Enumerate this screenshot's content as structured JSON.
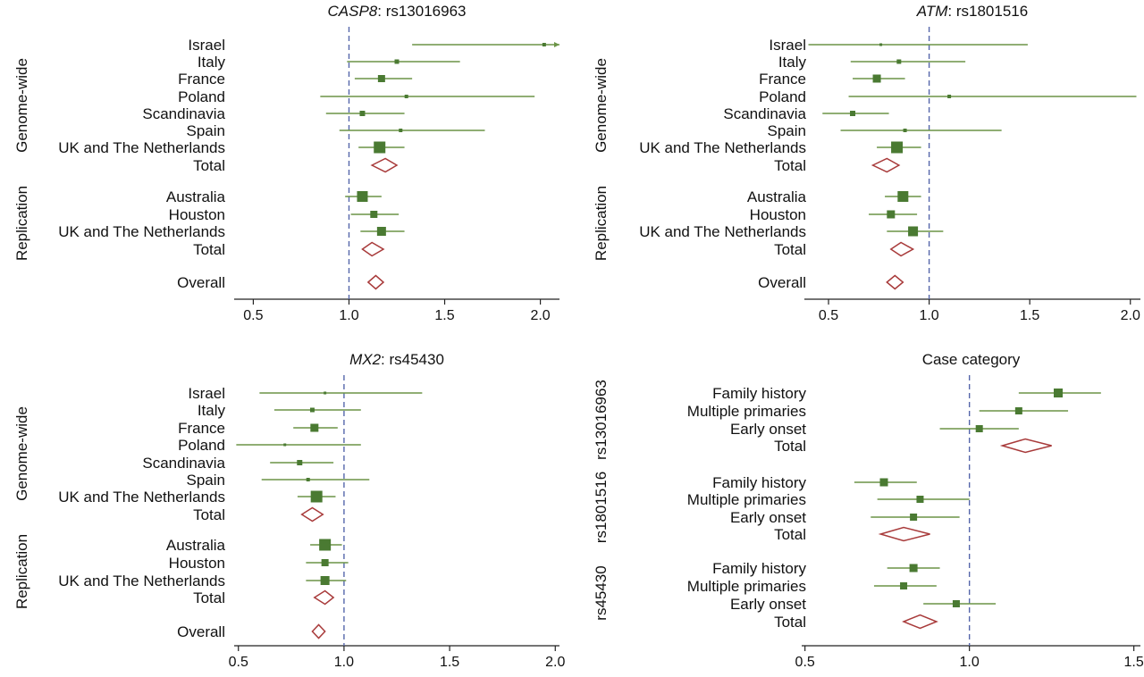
{
  "colors": {
    "point": "#4a7a32",
    "ci": "#6b9447",
    "diamond": "#a83a3a",
    "reference": "#5566aa",
    "axis": "#222222"
  },
  "chart_data": [
    {
      "type": "forest",
      "title_gene": "CASP8",
      "title_rest": ": rs13016963",
      "xlim": [
        0.4,
        2.1
      ],
      "xticks": [
        0.5,
        1.0,
        1.5,
        2.0
      ],
      "xtick_labels": [
        "0.5",
        "1.0",
        "1.5",
        "2.0"
      ],
      "reference": 1.0,
      "groups": [
        {
          "label": "Genome-wide",
          "rows": [
            {
              "label": "Israel",
              "or": 2.02,
              "lo": 1.33,
              "hi": 2.1,
              "size": 4,
              "arrow": true
            },
            {
              "label": "Italy",
              "or": 1.25,
              "lo": 0.99,
              "hi": 1.58,
              "size": 5
            },
            {
              "label": "France",
              "or": 1.17,
              "lo": 1.03,
              "hi": 1.33,
              "size": 8
            },
            {
              "label": "Poland",
              "or": 1.3,
              "lo": 0.85,
              "hi": 1.97,
              "size": 4
            },
            {
              "label": "Scandinavia",
              "or": 1.07,
              "lo": 0.88,
              "hi": 1.29,
              "size": 6
            },
            {
              "label": "Spain",
              "or": 1.27,
              "lo": 0.95,
              "hi": 1.71,
              "size": 4
            },
            {
              "label": "UK and The Netherlands",
              "or": 1.16,
              "lo": 1.05,
              "hi": 1.29,
              "size": 13
            },
            {
              "label": "Total",
              "or": 1.19,
              "lo": 1.12,
              "hi": 1.25,
              "diamond": true
            }
          ]
        },
        {
          "label": "Replication",
          "rows": [
            {
              "label": "Australia",
              "or": 1.07,
              "lo": 0.98,
              "hi": 1.17,
              "size": 12
            },
            {
              "label": "Houston",
              "or": 1.13,
              "lo": 1.01,
              "hi": 1.26,
              "size": 8
            },
            {
              "label": "UK and The Netherlands",
              "or": 1.17,
              "lo": 1.06,
              "hi": 1.29,
              "size": 10
            },
            {
              "label": "Total",
              "or": 1.12,
              "lo": 1.07,
              "hi": 1.18,
              "diamond": true
            }
          ]
        },
        {
          "label": "",
          "rows": [
            {
              "label": "Overall",
              "or": 1.14,
              "lo": 1.1,
              "hi": 1.18,
              "diamond": true
            }
          ]
        }
      ]
    },
    {
      "type": "forest",
      "title_gene": "ATM",
      "title_rest": ": rs1801516",
      "xlim": [
        0.38,
        2.05
      ],
      "xticks": [
        0.5,
        1.0,
        1.5,
        2.0
      ],
      "xtick_labels": [
        "0.5",
        "1.0",
        "1.5",
        "2.0"
      ],
      "reference": 1.0,
      "groups": [
        {
          "label": "Genome-wide",
          "rows": [
            {
              "label": "Israel",
              "or": 0.76,
              "lo": 0.4,
              "hi": 1.49,
              "size": 3
            },
            {
              "label": "Italy",
              "or": 0.85,
              "lo": 0.61,
              "hi": 1.18,
              "size": 5
            },
            {
              "label": "France",
              "or": 0.74,
              "lo": 0.62,
              "hi": 0.88,
              "size": 9
            },
            {
              "label": "Poland",
              "or": 1.1,
              "lo": 0.6,
              "hi": 2.03,
              "size": 4
            },
            {
              "label": "Scandinavia",
              "or": 0.62,
              "lo": 0.47,
              "hi": 0.8,
              "size": 6
            },
            {
              "label": "Spain",
              "or": 0.88,
              "lo": 0.56,
              "hi": 1.36,
              "size": 4
            },
            {
              "label": "UK and The Netherlands",
              "or": 0.84,
              "lo": 0.74,
              "hi": 0.96,
              "size": 13
            },
            {
              "label": "Total",
              "or": 0.79,
              "lo": 0.72,
              "hi": 0.85,
              "diamond": true
            }
          ]
        },
        {
          "label": "Replication",
          "rows": [
            {
              "label": "Australia",
              "or": 0.87,
              "lo": 0.78,
              "hi": 0.96,
              "size": 12
            },
            {
              "label": "Houston",
              "or": 0.81,
              "lo": 0.7,
              "hi": 0.94,
              "size": 9
            },
            {
              "label": "UK and The Netherlands",
              "or": 0.92,
              "lo": 0.79,
              "hi": 1.07,
              "size": 11
            },
            {
              "label": "Total",
              "or": 0.86,
              "lo": 0.81,
              "hi": 0.92,
              "diamond": true
            }
          ]
        },
        {
          "label": "",
          "rows": [
            {
              "label": "Overall",
              "or": 0.83,
              "lo": 0.79,
              "hi": 0.87,
              "diamond": true
            }
          ]
        }
      ]
    },
    {
      "type": "forest",
      "title_gene": "MX2",
      "title_rest": ": rs45430",
      "xlim": [
        0.48,
        2.02
      ],
      "xticks": [
        0.5,
        1.0,
        1.5,
        2.0
      ],
      "xtick_labels": [
        "0.5",
        "1.0",
        "1.5",
        "2.0"
      ],
      "reference": 1.0,
      "groups": [
        {
          "label": "Genome-wide",
          "rows": [
            {
              "label": "Israel",
              "or": 0.91,
              "lo": 0.6,
              "hi": 1.37,
              "size": 3
            },
            {
              "label": "Italy",
              "or": 0.85,
              "lo": 0.67,
              "hi": 1.08,
              "size": 5
            },
            {
              "label": "France",
              "or": 0.86,
              "lo": 0.76,
              "hi": 0.97,
              "size": 9
            },
            {
              "label": "Poland",
              "or": 0.72,
              "lo": 0.49,
              "hi": 1.08,
              "size": 3
            },
            {
              "label": "Scandinavia",
              "or": 0.79,
              "lo": 0.65,
              "hi": 0.95,
              "size": 6
            },
            {
              "label": "Spain",
              "or": 0.83,
              "lo": 0.61,
              "hi": 1.12,
              "size": 4
            },
            {
              "label": "UK and The Netherlands",
              "or": 0.87,
              "lo": 0.78,
              "hi": 0.96,
              "size": 13
            },
            {
              "label": "Total",
              "or": 0.85,
              "lo": 0.8,
              "hi": 0.9,
              "diamond": true
            }
          ]
        },
        {
          "label": "Replication",
          "rows": [
            {
              "label": "Australia",
              "or": 0.91,
              "lo": 0.84,
              "hi": 0.99,
              "size": 13
            },
            {
              "label": "Houston",
              "or": 0.91,
              "lo": 0.82,
              "hi": 1.02,
              "size": 8
            },
            {
              "label": "UK and The Netherlands",
              "or": 0.91,
              "lo": 0.82,
              "hi": 1.01,
              "size": 10
            },
            {
              "label": "Total",
              "or": 0.91,
              "lo": 0.86,
              "hi": 0.95,
              "diamond": true
            }
          ]
        },
        {
          "label": "",
          "rows": [
            {
              "label": "Overall",
              "or": 0.88,
              "lo": 0.85,
              "hi": 0.91,
              "diamond": true
            }
          ]
        }
      ]
    },
    {
      "type": "forest",
      "title_gene": "",
      "title_rest": "Case category",
      "xlim": [
        0.49,
        1.52
      ],
      "xticks": [
        0.5,
        1.0,
        1.5
      ],
      "xtick_labels": [
        "0.5",
        "1.0",
        "1.5"
      ],
      "reference": 1.0,
      "groups": [
        {
          "label": "rs13016963",
          "rows": [
            {
              "label": "Family history",
              "or": 1.27,
              "lo": 1.15,
              "hi": 1.4,
              "size": 10
            },
            {
              "label": "Multiple primaries",
              "or": 1.15,
              "lo": 1.03,
              "hi": 1.3,
              "size": 8
            },
            {
              "label": "Early onset",
              "or": 1.03,
              "lo": 0.91,
              "hi": 1.15,
              "size": 8
            },
            {
              "label": "Total",
              "or": 1.17,
              "lo": 1.1,
              "hi": 1.25,
              "diamond": true
            }
          ]
        },
        {
          "label": "rs1801516",
          "rows": [
            {
              "label": "Family history",
              "or": 0.74,
              "lo": 0.65,
              "hi": 0.84,
              "size": 9
            },
            {
              "label": "Multiple primaries",
              "or": 0.85,
              "lo": 0.72,
              "hi": 1.0,
              "size": 8
            },
            {
              "label": "Early onset",
              "or": 0.83,
              "lo": 0.7,
              "hi": 0.97,
              "size": 8
            },
            {
              "label": "Total",
              "or": 0.8,
              "lo": 0.73,
              "hi": 0.88,
              "diamond": true
            }
          ]
        },
        {
          "label": "rs45430",
          "rows": [
            {
              "label": "Family history",
              "or": 0.83,
              "lo": 0.75,
              "hi": 0.91,
              "size": 9
            },
            {
              "label": "Multiple primaries",
              "or": 0.8,
              "lo": 0.71,
              "hi": 0.9,
              "size": 8
            },
            {
              "label": "Early onset",
              "or": 0.96,
              "lo": 0.86,
              "hi": 1.08,
              "size": 8
            },
            {
              "label": "Total",
              "or": 0.85,
              "lo": 0.8,
              "hi": 0.9,
              "diamond": true
            }
          ]
        }
      ]
    }
  ]
}
